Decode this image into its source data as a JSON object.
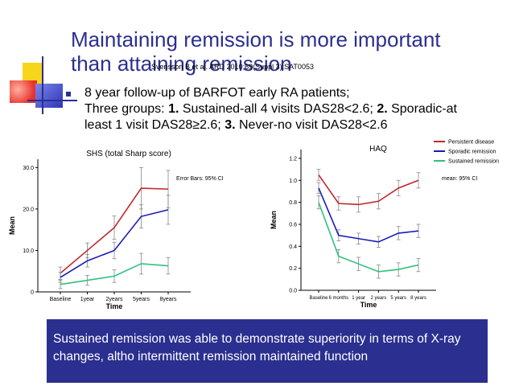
{
  "slide": {
    "title_lines": [
      "Maintaining remission is more important",
      "than attaining remission"
    ],
    "citation": "Svensson B et al. ARD 2010;69(Suppl 3):SAT0053",
    "bullet": {
      "line1": "8 year follow-up of BARFOT early RA patients;",
      "line2": [
        {
          "text": "Three groups: ",
          "bold": false
        },
        {
          "text": "1.",
          "bold": true
        },
        {
          "text": " Sustained-all 4 visits DAS28<2.6; ",
          "bold": false
        },
        {
          "text": "2.",
          "bold": true
        },
        {
          "text": " Sporadic-at",
          "bold": false
        }
      ],
      "line3": [
        {
          "text": "least 1 visit DAS28≥2.6; ",
          "bold": false
        },
        {
          "text": "3.",
          "bold": true
        },
        {
          "text": " Never-no visit DAS28<2.6",
          "bold": false
        }
      ]
    },
    "conclusion": "Sustained remission was able to demonstrate superiority in terms of X-ray changes, altho intermittent remission maintained function"
  },
  "colors": {
    "title": "#2b2f8f",
    "box": "#2b2f8f",
    "persistent": "#c0282d",
    "sporadic": "#1a1ab8",
    "sustained": "#2ec27e",
    "error": "#888888"
  },
  "chart_data": [
    {
      "type": "line",
      "title": "SHS (total Sharp score)",
      "annotation": "Error Bars: 95% CI",
      "xlabel": "Time",
      "ylabel": "Mean",
      "categories": [
        "Baseline",
        "1year",
        "2years",
        "5years",
        "8years"
      ],
      "ylim": [
        0,
        32
      ],
      "yticks": [
        "0",
        "10.0",
        "20.0",
        "30.0"
      ],
      "ytick_values": [
        0,
        10,
        20,
        30
      ],
      "series": [
        {
          "color_key": "persistent",
          "values": [
            4.5,
            10.0,
            15.5,
            25.0,
            24.8
          ],
          "err": [
            1.5,
            1.8,
            2.8,
            5.0,
            4.5
          ]
        },
        {
          "color_key": "sporadic",
          "values": [
            3.5,
            7.5,
            10.0,
            18.2,
            19.8
          ],
          "err": [
            1.2,
            1.5,
            2.0,
            2.8,
            3.5
          ]
        },
        {
          "color_key": "sustained",
          "values": [
            1.8,
            2.8,
            3.8,
            6.8,
            6.3
          ],
          "err": [
            1.0,
            1.2,
            1.5,
            2.5,
            2.0
          ]
        }
      ]
    },
    {
      "type": "line",
      "title": "HAQ",
      "annotation": "mean: 95% CI",
      "xlabel": "Time",
      "ylabel": "Mean",
      "categories": [
        "Baseline",
        "6 months",
        "1 year",
        "2 years",
        "5 years",
        "8 years"
      ],
      "ylim": [
        0,
        1.28
      ],
      "yticks": [
        "0.0",
        "0.2",
        "0.4",
        "0.6",
        "0.8",
        "1.0",
        "1.2"
      ],
      "ytick_values": [
        0,
        0.2,
        0.4,
        0.6,
        0.8,
        1.0,
        1.2
      ],
      "legend": [
        "Persistent disease",
        "Sporadic remission",
        "Sustained remission"
      ],
      "legend_position": "top-right",
      "series": [
        {
          "name": "Persistent disease",
          "color_key": "persistent",
          "values": [
            1.05,
            0.79,
            0.78,
            0.81,
            0.93,
            1.0
          ],
          "err": [
            0.05,
            0.06,
            0.07,
            0.07,
            0.07,
            0.07
          ]
        },
        {
          "name": "Sporadic remission",
          "color_key": "sporadic",
          "values": [
            0.93,
            0.5,
            0.47,
            0.44,
            0.52,
            0.54
          ],
          "err": [
            0.05,
            0.05,
            0.05,
            0.05,
            0.06,
            0.06
          ]
        },
        {
          "name": "Sustained remission",
          "color_key": "sustained",
          "values": [
            0.8,
            0.31,
            0.24,
            0.17,
            0.19,
            0.23
          ],
          "err": [
            0.06,
            0.06,
            0.06,
            0.06,
            0.06,
            0.06
          ]
        }
      ]
    }
  ]
}
